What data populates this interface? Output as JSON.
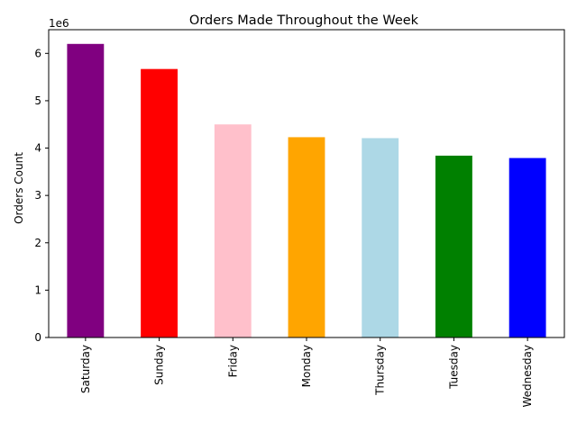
{
  "chart_data": {
    "type": "bar",
    "title": "Orders Made Throughout the Week",
    "xlabel": "",
    "ylabel": "Orders Count",
    "offset_label": "1e6",
    "scale_factor": 1000000,
    "categories": [
      "Saturday",
      "Sunday",
      "Friday",
      "Monday",
      "Thursday",
      "Tuesday",
      "Wednesday"
    ],
    "values": [
      6200000,
      5670000,
      4500000,
      4230000,
      4210000,
      3840000,
      3790000
    ],
    "colors": [
      "#800080",
      "#ff0000",
      "#ffc0cb",
      "#ffa500",
      "#add8e6",
      "#008000",
      "#0000ff"
    ],
    "ylim": [
      0,
      6500000
    ],
    "yticks": [
      0,
      1,
      2,
      3,
      4,
      5,
      6
    ],
    "grid": false,
    "legend": false
  }
}
